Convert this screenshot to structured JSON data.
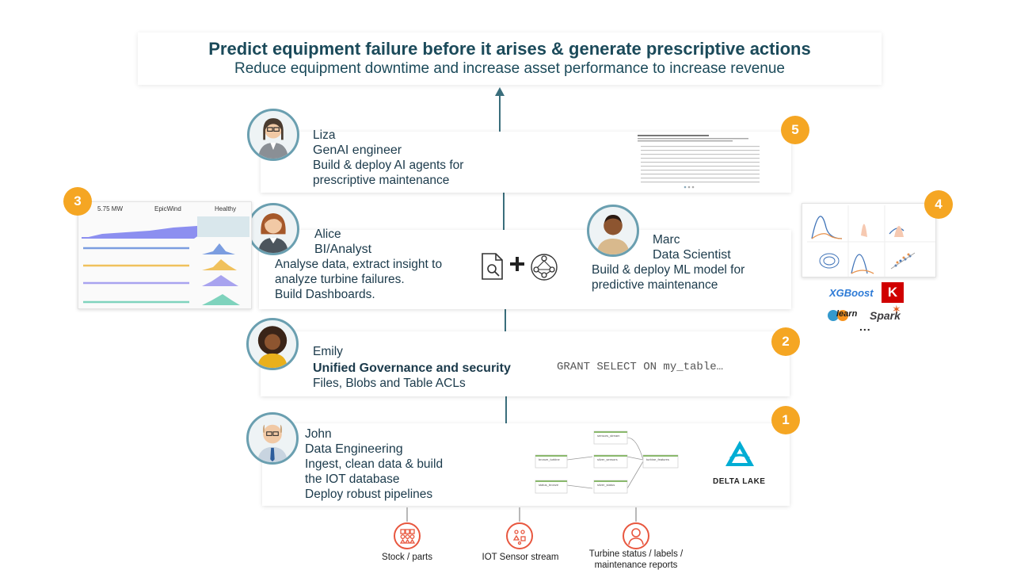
{
  "header": {
    "title": "Predict equipment failure before it arises  & generate prescriptive actions",
    "subtitle": "Reduce equipment downtime and increase asset performance to increase revenue"
  },
  "liza": {
    "name": "Liza",
    "role": "GenAI engineer",
    "desc1": "Build & deploy AI agents for",
    "desc2": "prescriptive maintenance",
    "badge": "5"
  },
  "alice": {
    "name": "Alice",
    "role": "BI/Analyst",
    "desc1": "Analyse data, extract insight to",
    "desc2": "analyze turbine failures.",
    "desc3": "Build Dashboards.",
    "badge": "3"
  },
  "marc": {
    "name": "Marc",
    "role": "Data Scientist",
    "desc1": "Build & deploy ML model for",
    "desc2": "predictive maintenance",
    "badge": "4"
  },
  "emily": {
    "name": "Emily",
    "role": "Unified Governance and security",
    "desc1": "Files, Blobs and Table ACLs",
    "code": "GRANT SELECT ON my_table…",
    "badge": "2"
  },
  "john": {
    "name": "John",
    "role": "Data Engineering",
    "desc1": "Ingest, clean data & build",
    "desc2": "the IOT database",
    "desc3": "Deploy robust pipelines",
    "badge": "1"
  },
  "dashboard": {
    "kpi1": "5.75 MW",
    "kpi2": "EpicWind",
    "kpi3": "Healthy"
  },
  "pipeline": {
    "nodes": [
      "bronze_turbine",
      "sensors_stream",
      "silver_sensors",
      "silver_status",
      "status_bronze",
      "turbine_features"
    ]
  },
  "delta": {
    "label": "DELTA LAKE"
  },
  "ml_libs": {
    "xgboost": "XGBoost",
    "keras": "K",
    "sklearn": "learn",
    "spark": "Spark",
    "more": "..."
  },
  "sources": [
    {
      "label": "Stock / parts"
    },
    {
      "label": "IOT Sensor stream"
    },
    {
      "label": "Turbine status / labels /",
      "label2": "maintenance reports"
    }
  ],
  "colors": {
    "accent": "#f5a623",
    "line": "#3a6e7c",
    "text": "#1b3a4b",
    "source": "#e8573f"
  }
}
